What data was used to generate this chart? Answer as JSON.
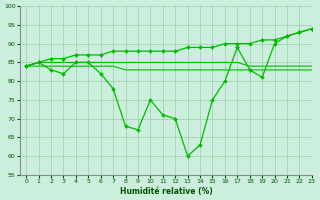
{
  "x": [
    0,
    1,
    2,
    3,
    4,
    5,
    6,
    7,
    8,
    9,
    10,
    11,
    12,
    13,
    14,
    15,
    16,
    17,
    18,
    19,
    20,
    21,
    22,
    23
  ],
  "line_main": [
    84,
    85,
    83,
    82,
    85,
    85,
    82,
    78,
    68,
    67,
    75,
    71,
    70,
    60,
    63,
    75,
    80,
    89,
    83,
    81,
    90,
    92,
    93,
    94
  ],
  "line_upper": [
    84,
    85,
    86,
    86,
    87,
    87,
    87,
    88,
    88,
    88,
    88,
    88,
    88,
    89,
    89,
    89,
    90,
    90,
    90,
    91,
    91,
    92,
    93,
    94
  ],
  "line_lower": [
    84,
    84,
    84,
    84,
    84,
    84,
    84,
    84,
    83,
    83,
    83,
    83,
    83,
    83,
    83,
    83,
    83,
    83,
    83,
    83,
    83,
    83,
    83,
    83
  ],
  "line_mid": [
    84,
    85,
    85,
    85,
    85,
    85,
    85,
    85,
    85,
    85,
    85,
    85,
    85,
    85,
    85,
    85,
    85,
    85,
    84,
    84,
    84,
    84,
    84,
    84
  ],
  "bg_color": "#cceedd",
  "grid_color": "#99ccaa",
  "line_color": "#00bb00",
  "xlabel": "Humidité relative (%)",
  "ylim": [
    55,
    100
  ],
  "xlim": [
    -0.5,
    23
  ],
  "yticks": [
    55,
    60,
    65,
    70,
    75,
    80,
    85,
    90,
    95,
    100
  ],
  "xticks": [
    0,
    1,
    2,
    3,
    4,
    5,
    6,
    7,
    8,
    9,
    10,
    11,
    12,
    13,
    14,
    15,
    16,
    17,
    18,
    19,
    20,
    21,
    22,
    23
  ]
}
